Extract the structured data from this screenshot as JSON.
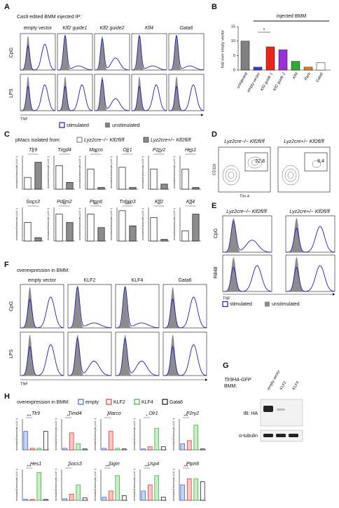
{
  "panel_A": {
    "letter": "A",
    "title": "Cas9 edited BMM injected IP:",
    "columns": [
      "empty vector",
      "Klf2 guide1",
      "Klf2 guide2",
      "Klf4",
      "Gata6"
    ],
    "rows": [
      "CpG",
      "LPS"
    ],
    "x_label": "TNF",
    "legend": [
      {
        "name": "stimulated",
        "color": "#1f1fb4"
      },
      {
        "name": "unstimulated",
        "color": "#808080"
      }
    ]
  },
  "panel_B": {
    "letter": "B",
    "type": "bar",
    "y_label": "fold over empty vector",
    "bracket": "injected BMM",
    "categories": [
      "uninjected",
      "empty vector",
      "Klf2 guide 1",
      "Klf2 guide 2",
      "Klf4",
      "Rarb",
      "Gata6"
    ],
    "values": [
      10,
      1,
      8,
      7,
      3,
      1,
      2.5
    ],
    "colors": [
      "#808080",
      "#3a3ad0",
      "#e8261c",
      "#9b30d9",
      "#2eae2e",
      "#f07d1a",
      "#ffffff"
    ],
    "ylim": [
      0,
      15
    ],
    "yticks": [
      0,
      5,
      10,
      15
    ],
    "sig": "*"
  },
  "panel_C": {
    "letter": "C",
    "title": "pMacs isolated from:",
    "y_label": "normalized transcripts (x10⁻³)",
    "ylim": [
      0,
      100
    ],
    "groups": [
      {
        "name": "Lyz2cre−/− Klf2fl/fl",
        "color": "#ffffff"
      },
      {
        "name": "Lyz2cre+/− Klf2fl/fl",
        "color": "#8c8c8c"
      }
    ],
    "charts": [
      {
        "title": "Tlr9",
        "values": [
          35,
          80
        ],
        "sig": "*"
      },
      {
        "title": "Timd4",
        "values": [
          70,
          20
        ],
        "sig": "**"
      },
      {
        "title": "Marco",
        "values": [
          60,
          5
        ],
        "sig": "**"
      },
      {
        "title": "Olr1",
        "values": [
          65,
          5
        ],
        "sig": "**"
      },
      {
        "title": "P2ry2",
        "values": [
          60,
          15
        ],
        "sig": "**"
      },
      {
        "title": "Hes1",
        "values": [
          60,
          5
        ],
        "sig": "**"
      },
      {
        "title": "Socs3",
        "values": [
          55,
          10
        ],
        "sig": "*"
      },
      {
        "title": "Pdlim2",
        "values": [
          80,
          55
        ],
        "sig": "**"
      },
      {
        "title": "Ptpn6",
        "values": [
          80,
          40
        ],
        "sig": "***"
      },
      {
        "title": "Tnfaip3",
        "values": [
          90,
          45
        ],
        "sig": "***"
      },
      {
        "title": "Klf2",
        "values": [
          70,
          5
        ],
        "sig": "**"
      },
      {
        "title": "Klf4",
        "values": [
          30,
          80
        ],
        "sig": "**"
      }
    ]
  },
  "panel_D": {
    "letter": "D",
    "columns": [
      "Lyz2cre−/− Klf2fl/fl",
      "Lyz2cre+/− Klf2fl/fl"
    ],
    "gates": [
      22.8,
      6.4
    ],
    "y_label": "CD11b",
    "x_label": "Tim-4"
  },
  "panel_E": {
    "letter": "E",
    "columns": [
      "Lyz2cre−/− Klf2fl/fl",
      "Lyz2cre+/− Klf2fl/fl"
    ],
    "rows": [
      "CpG",
      "R848"
    ],
    "x_label": "TNF",
    "legend": [
      "stimulated",
      "unstimulated"
    ]
  },
  "panel_F": {
    "letter": "F",
    "title": "overexpression in BMM:",
    "columns": [
      "empty vector",
      "KLF2",
      "KLF4",
      "Gata6"
    ],
    "rows": [
      "CpG",
      "LPS"
    ],
    "x_label": "TNF"
  },
  "panel_G": {
    "letter": "G",
    "title": "Tlr9HA-GFP",
    "subtitle": "BMM:",
    "lanes": [
      "empty vector",
      "KLF2",
      "KLF4"
    ],
    "blots": [
      "IB: HA",
      "α-tubulin"
    ]
  },
  "panel_H": {
    "letter": "H",
    "title": "overexpression in BMM:",
    "y_label": "normalized transcripts (x10⁻³)",
    "ylim": [
      0,
      100
    ],
    "groups": [
      {
        "name": "empty",
        "color": "#2f5fd0"
      },
      {
        "name": "KLF2",
        "color": "#e8261c"
      },
      {
        "name": "KLF4",
        "color": "#2eae2e"
      },
      {
        "name": "Gata6",
        "color": "#000000"
      }
    ],
    "charts": [
      {
        "title": "Tlr9",
        "values": [
          60,
          5,
          5,
          60
        ],
        "sig": "***"
      },
      {
        "title": "Timd4",
        "values": [
          5,
          55,
          20,
          3
        ],
        "sig": "**"
      },
      {
        "title": "Marco",
        "values": [
          5,
          60,
          5,
          3
        ],
        "sig": "*"
      },
      {
        "title": "Olr1",
        "values": [
          3,
          10,
          70,
          10
        ],
        "sig": "*"
      },
      {
        "title": "P2ry2",
        "values": [
          20,
          30,
          80,
          3
        ],
        "sig": "***"
      },
      {
        "title": "Hes1",
        "values": [
          3,
          3,
          90,
          3
        ],
        "sig": "***"
      },
      {
        "title": "Socs3",
        "values": [
          5,
          20,
          50,
          8
        ],
        "sig": "*"
      },
      {
        "title": "Sigirr",
        "values": [
          10,
          30,
          80,
          15
        ],
        "sig": "***"
      },
      {
        "title": "Usp4",
        "values": [
          30,
          50,
          80,
          10
        ],
        "sig": "***"
      },
      {
        "title": "Ptpn6",
        "values": [
          50,
          70,
          70,
          60
        ],
        "sig": "***"
      }
    ]
  }
}
